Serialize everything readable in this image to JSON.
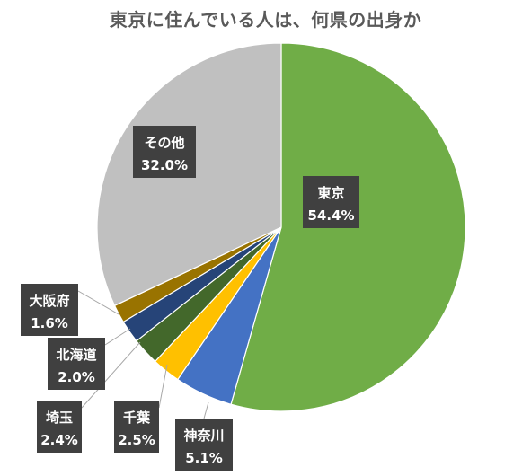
{
  "chart_data": {
    "type": "pie",
    "title": "東京に住んでいる人は、何県の出身か",
    "start_angle_deg": 0,
    "direction": "clockwise",
    "legend": "none",
    "slices": [
      {
        "label": "東京",
        "value": 54.4,
        "value_label": "54.4%",
        "color": "#70AD47"
      },
      {
        "label": "神奈川",
        "value": 5.1,
        "value_label": "5.1%",
        "color": "#4472C4"
      },
      {
        "label": "千葉",
        "value": 2.5,
        "value_label": "2.5%",
        "color": "#FFC000"
      },
      {
        "label": "埼玉",
        "value": 2.4,
        "value_label": "2.4%",
        "color": "#43682B"
      },
      {
        "label": "北海道",
        "value": 2.0,
        "value_label": "2.0%",
        "color": "#264478"
      },
      {
        "label": "大阪府",
        "value": 1.6,
        "value_label": "1.6%",
        "color": "#997300"
      },
      {
        "label": "その他",
        "value": 32.0,
        "value_label": "32.0%",
        "color": "#C0C0C0"
      }
    ]
  }
}
